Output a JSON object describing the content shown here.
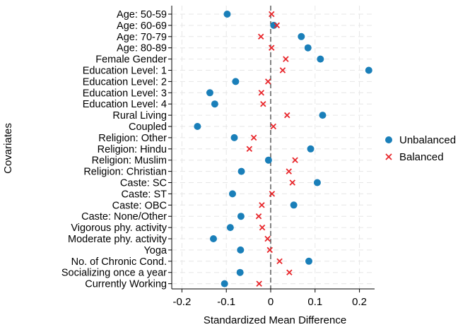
{
  "chart_data": {
    "type": "scatter",
    "title": "",
    "xlabel": "Standardized Mean Difference",
    "ylabel": "Covariates",
    "xlim": [
      -0.24,
      0.24
    ],
    "xticks": [
      -0.2,
      -0.1,
      0,
      0.1,
      0.2
    ],
    "xtick_labels": [
      "-0.2",
      "-0.1",
      "0",
      "0.1",
      "0.2"
    ],
    "grid": true,
    "reference_line": 0,
    "legend_position": "right",
    "categories": [
      "Age: 50-59",
      "Age: 60-69",
      "Age: 70-79",
      "Age: 80-89",
      "Female Gender",
      "Education Level: 1",
      "Education Level: 2",
      "Education Level: 3",
      "Education Level: 4",
      "Rural Living",
      "Coupled",
      "Religion: Other",
      "Religion: Hindu",
      "Religion: Muslim",
      "Religion: Christian",
      "Caste: SC",
      "Caste: ST",
      "Caste: OBC",
      "Caste: None/Other",
      "Vigorous phy. activity",
      "Moderate phy. activity",
      "Yoga",
      "No. of Chronic Cond.",
      "Socializing once a year",
      "Currently Working"
    ],
    "series": [
      {
        "name": "Unbalanced",
        "marker": "circle",
        "color": "#1a7fb9",
        "values": [
          -0.098,
          0.007,
          0.069,
          0.084,
          0.112,
          0.221,
          -0.079,
          -0.137,
          -0.126,
          0.117,
          -0.165,
          -0.082,
          0.09,
          -0.005,
          -0.066,
          0.105,
          -0.086,
          0.052,
          -0.067,
          -0.091,
          -0.129,
          -0.068,
          0.086,
          -0.069,
          -0.104
        ]
      },
      {
        "name": "Balanced",
        "marker": "x",
        "color": "#e8262b",
        "values": [
          0.002,
          0.014,
          -0.022,
          0.002,
          0.034,
          0.027,
          -0.006,
          -0.021,
          -0.017,
          0.037,
          0.006,
          -0.038,
          -0.048,
          0.055,
          0.041,
          0.049,
          0.003,
          -0.02,
          -0.027,
          -0.019,
          -0.007,
          -0.002,
          0.02,
          0.042,
          -0.026
        ]
      }
    ]
  }
}
